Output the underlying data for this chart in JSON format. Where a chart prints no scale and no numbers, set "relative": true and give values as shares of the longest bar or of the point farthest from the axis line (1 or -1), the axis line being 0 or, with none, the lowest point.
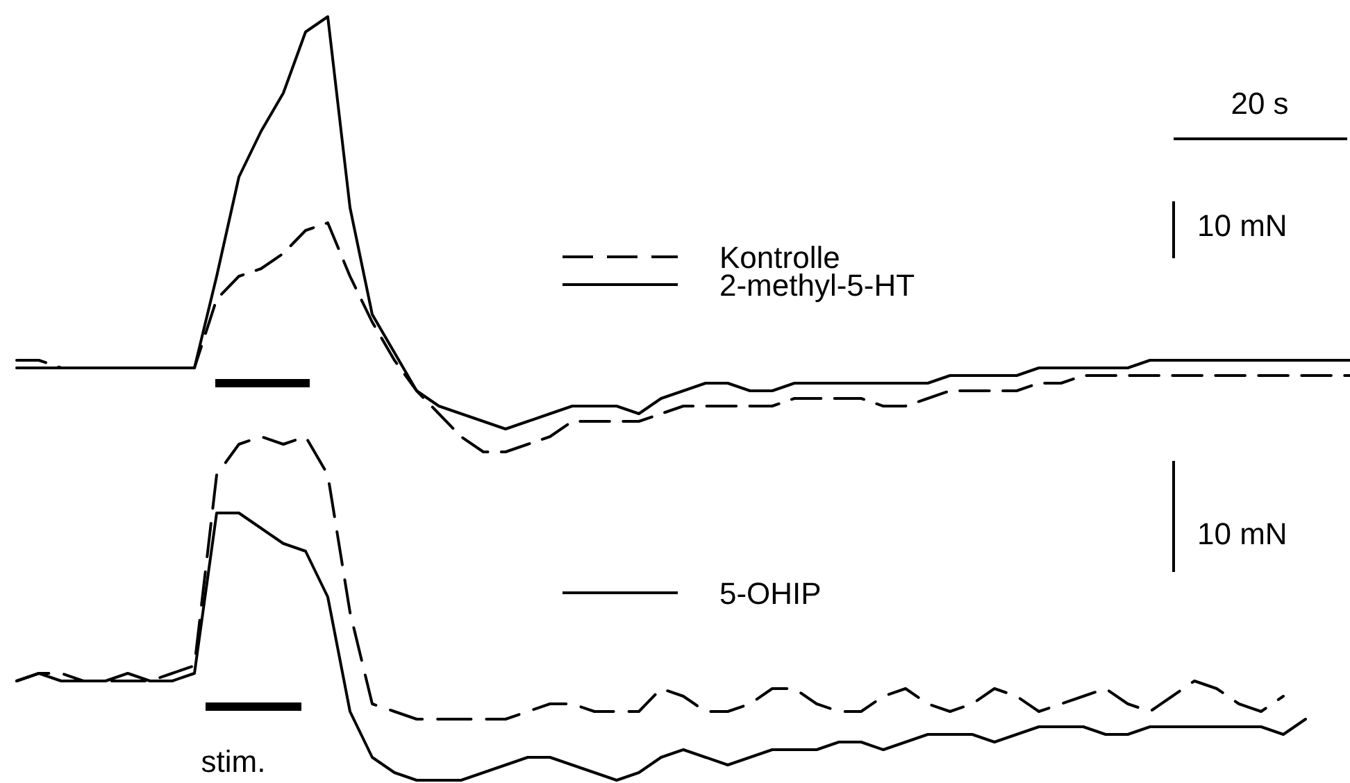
{
  "chart_data": {
    "type": "line",
    "relative": true,
    "legend": "right",
    "categories": [
      null,
      null,
      null,
      null,
      null,
      null,
      null,
      null,
      null,
      null,
      null,
      null,
      null,
      null,
      null,
      null,
      null,
      null,
      null,
      null,
      null,
      null,
      null,
      null,
      null,
      null,
      null,
      null,
      null,
      null,
      null,
      null,
      null,
      null,
      null,
      null,
      null,
      null,
      null,
      null,
      null,
      null,
      null,
      null,
      null,
      null,
      null,
      null,
      null,
      null,
      null,
      null,
      null,
      null,
      null,
      null,
      null,
      null,
      null,
      null,
      null
    ],
    "series": [
      {
        "name": "Kontrolle",
        "color": "#000000",
        "line_style": "dashed",
        "values": [
          0.55,
          0.55,
          0.54,
          0.54,
          0.54,
          0.54,
          0.54,
          0.54,
          0.54,
          0.63,
          0.66,
          0.67,
          0.69,
          0.72,
          0.73,
          0.66,
          0.6,
          0.55,
          0.51,
          0.48,
          0.45,
          0.43,
          0.43,
          0.44,
          0.45,
          0.47,
          0.47,
          0.47,
          0.47,
          0.48,
          0.49,
          0.49,
          0.49,
          0.49,
          0.49,
          0.5,
          0.5,
          0.5,
          0.5,
          0.49,
          0.49,
          0.5,
          0.51,
          0.51,
          0.51,
          0.51,
          0.52,
          0.52,
          0.53,
          0.53,
          0.53,
          0.53,
          0.53,
          0.53,
          0.53,
          0.53,
          0.53,
          0.53,
          0.53,
          0.53,
          0.53
        ]
      },
      {
        "name": "2-methyl-5-HT",
        "color": "#000000",
        "line_style": "solid",
        "values": [
          0.54,
          0.54,
          0.54,
          0.54,
          0.54,
          0.54,
          0.54,
          0.54,
          0.54,
          0.66,
          0.79,
          0.85,
          0.9,
          0.98,
          1,
          0.75,
          0.61,
          0.56,
          0.51,
          0.49,
          0.48,
          0.47,
          0.46,
          0.47,
          0.48,
          0.49,
          0.49,
          0.49,
          0.48,
          0.5,
          0.51,
          0.52,
          0.52,
          0.51,
          0.51,
          0.52,
          0.52,
          0.52,
          0.52,
          0.52,
          0.52,
          0.52,
          0.53,
          0.53,
          0.53,
          0.53,
          0.54,
          0.54,
          0.54,
          0.54,
          0.54,
          0.55,
          0.55,
          0.55,
          0.55,
          0.55,
          0.55,
          0.55,
          0.55,
          0.55,
          0.55
        ]
      },
      {
        "color": "#000000",
        "line_style": "dashed",
        "values": [
          0.13,
          0.14,
          0.14,
          0.13,
          0.13,
          0.13,
          0.13,
          0.14,
          0.15,
          0.4,
          0.44,
          0.45,
          0.44,
          0.45,
          0.4,
          0.22,
          0.1,
          0.09,
          0.08,
          0.08,
          0.08,
          0.08,
          0.08,
          0.09,
          0.1,
          0.1,
          0.09,
          0.09,
          0.09,
          0.12,
          0.11,
          0.09,
          0.09,
          0.1,
          0.12,
          0.12,
          0.1,
          0.09,
          0.09,
          0.11,
          0.12,
          0.1,
          0.09,
          0.1,
          0.12,
          0.11,
          0.09,
          0.1,
          0.11,
          0.12,
          0.1,
          0.09,
          0.11,
          0.13,
          0.12,
          0.1,
          0.09,
          0.11,
          null,
          null,
          null
        ]
      },
      {
        "name": "5-OHIP",
        "color": "#000000",
        "line_style": "solid",
        "values": [
          0.13,
          0.14,
          0.13,
          0.13,
          0.13,
          0.14,
          0.13,
          0.13,
          0.14,
          0.35,
          0.35,
          0.33,
          0.31,
          0.3,
          0.24,
          0.09,
          0.03,
          0.01,
          0,
          0,
          0,
          0.01,
          0.02,
          0.03,
          0.03,
          0.02,
          0.01,
          0,
          0.01,
          0.03,
          0.04,
          0.03,
          0.02,
          0.03,
          0.04,
          0.04,
          0.04,
          0.05,
          0.05,
          0.04,
          0.05,
          0.06,
          0.06,
          0.06,
          0.05,
          0.06,
          0.07,
          0.07,
          0.07,
          0.06,
          0.06,
          0.07,
          0.07,
          0.07,
          0.07,
          0.07,
          0.07,
          0.06,
          0.08,
          null,
          null
        ]
      }
    ],
    "annotations": [
      "20 s",
      "10 mN",
      "10 mN",
      "stim."
    ]
  }
}
